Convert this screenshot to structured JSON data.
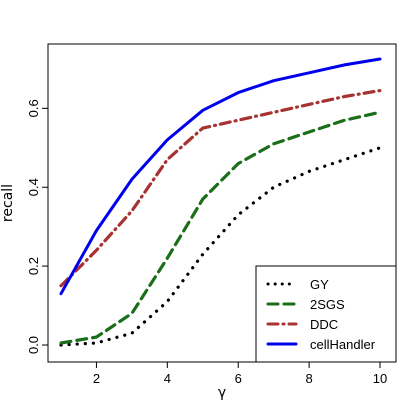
{
  "chart_data": {
    "type": "line",
    "xlabel": "γ",
    "ylabel": "recall",
    "xlim": [
      1,
      10
    ],
    "ylim": [
      0,
      0.72
    ],
    "x_ticks": [
      2,
      4,
      6,
      8,
      10
    ],
    "y_ticks": [
      0.0,
      0.2,
      0.4,
      0.6
    ],
    "y_tick_labels": [
      "0.0",
      "0.2",
      "0.4",
      "0.6"
    ],
    "legend_position": "bottom-right",
    "x": [
      1,
      2,
      3,
      4,
      5,
      6,
      7,
      8,
      9,
      10
    ],
    "series": [
      {
        "name": "GY",
        "color": "#000000",
        "style": "dotted",
        "values": [
          0.0,
          0.005,
          0.03,
          0.11,
          0.23,
          0.33,
          0.4,
          0.44,
          0.47,
          0.5
        ]
      },
      {
        "name": "2SGS",
        "color": "#1a6e1a",
        "style": "dashed",
        "values": [
          0.005,
          0.02,
          0.08,
          0.22,
          0.37,
          0.46,
          0.51,
          0.54,
          0.57,
          0.59
        ]
      },
      {
        "name": "DDC",
        "color": "#a83232",
        "style": "dashdot",
        "values": [
          0.15,
          0.24,
          0.34,
          0.47,
          0.55,
          0.57,
          0.59,
          0.61,
          0.63,
          0.645
        ]
      },
      {
        "name": "cellHandler",
        "color": "#0000ee",
        "style": "solid",
        "values": [
          0.13,
          0.29,
          0.42,
          0.52,
          0.595,
          0.64,
          0.67,
          0.69,
          0.71,
          0.725
        ]
      }
    ]
  }
}
